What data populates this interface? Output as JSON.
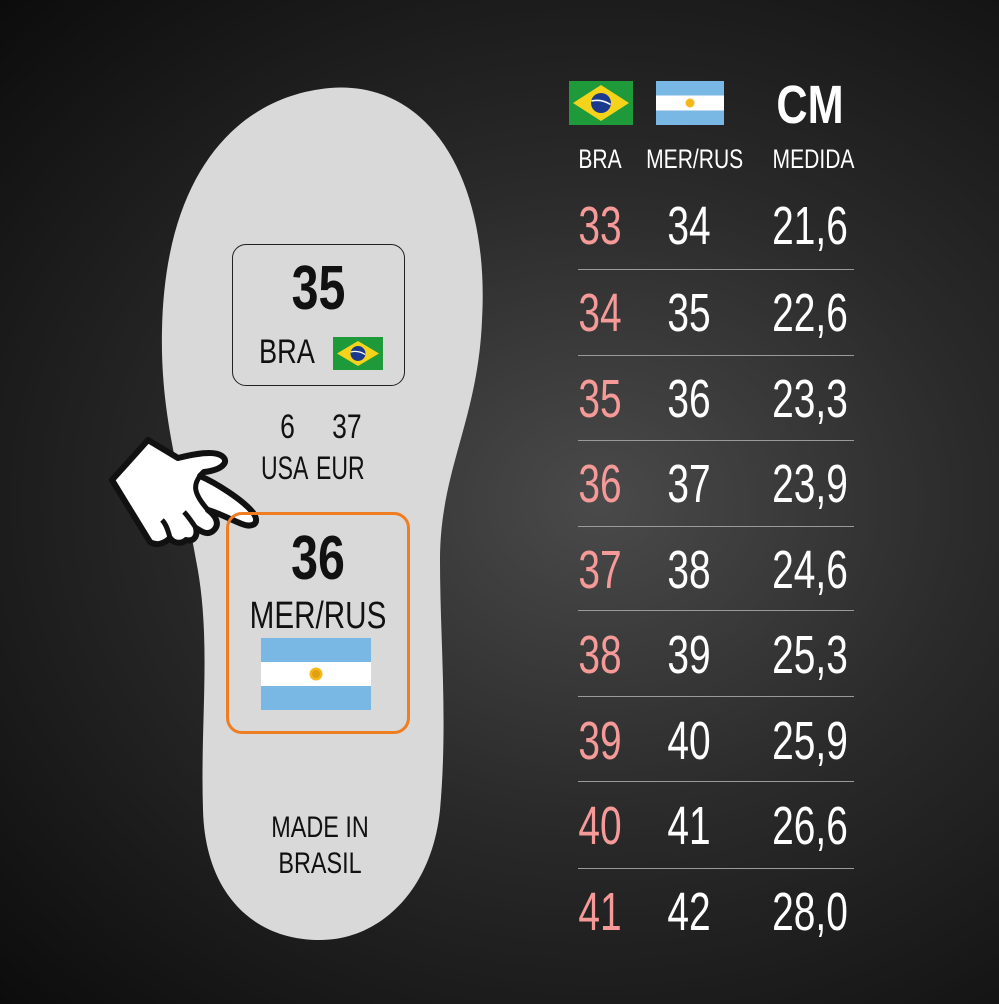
{
  "insole": {
    "bra": {
      "size": "35",
      "label": "BRA"
    },
    "usa": {
      "size": "6",
      "label": "USA"
    },
    "eur": {
      "size": "37",
      "label": "EUR"
    },
    "mer": {
      "size": "36",
      "label": "MER/RUS"
    },
    "made_in": [
      "MADE IN",
      "BRASIL"
    ],
    "highlight_color": "#ef7d22"
  },
  "table": {
    "title": "CM",
    "headers": [
      "BRA",
      "MER/RUS",
      "MEDIDA"
    ],
    "rows": [
      [
        "33",
        "34",
        "21,6"
      ],
      [
        "34",
        "35",
        "22,6"
      ],
      [
        "35",
        "36",
        "23,3"
      ],
      [
        "36",
        "37",
        "23,9"
      ],
      [
        "37",
        "38",
        "24,6"
      ],
      [
        "38",
        "39",
        "25,3"
      ],
      [
        "39",
        "40",
        "25,9"
      ],
      [
        "40",
        "41",
        "26,6"
      ],
      [
        "41",
        "42",
        "28,0"
      ]
    ],
    "bra_color": "#f59a98",
    "text_color": "#ffffff"
  },
  "icons": [
    "brazil-flag-icon",
    "argentina-flag-icon",
    "pointing-hand-icon",
    "insole-outline-icon"
  ]
}
